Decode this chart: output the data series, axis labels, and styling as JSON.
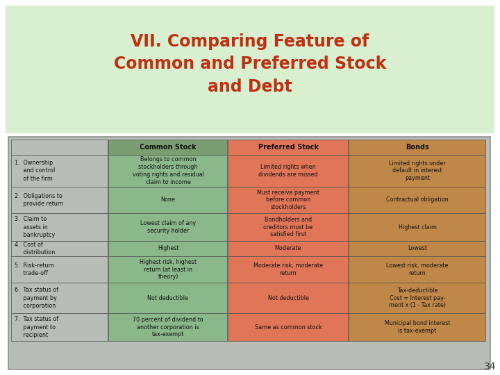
{
  "title_line1": "VII. Comparing Feature of",
  "title_line2": "Common and Preferred Stock",
  "title_line3": "and Debt",
  "title_color": "#c03010",
  "title_bg_color": "#d8f0d0",
  "page_number": "34",
  "outer_bg_color": "#ffffff",
  "table_outer_bg": "#b8bdb8",
  "table_inner_bg": "#b8bdb8",
  "col_headers": [
    "Common Stock",
    "Preferred Stock",
    "Bonds"
  ],
  "col_header_colors": [
    "#7a9e72",
    "#e07558",
    "#c08848"
  ],
  "col_content_colors": [
    "#8ab88a",
    "#e07558",
    "#c08848"
  ],
  "row_label_color": "#b8bdb8",
  "row_labels": [
    "1.  Ownership\n     and control\n     of the firm",
    "2.  Obligations to\n     provide return",
    "3.  Claim to\n     assets in\n     bankruptcy",
    "4.  Cost of\n     distribution",
    "5.  Risk-return\n     trade-off",
    "6.  Tax status of\n     payment by\n     corporation",
    "7.  Tax status of\n     payment to\n     recipient"
  ],
  "common_stock": [
    "Belongs to common\nstockholders through\nvoting rights and residual\nclaim to income",
    "None",
    "Lowest claim of any\nsecurity holder",
    "Highest",
    "Highest risk, highest\nreturn (at least in\ntheory)",
    "Not deductible",
    "70 percent of dividend to\nanother corporation is\ntax-exempt"
  ],
  "preferred_stock": [
    "Limited rights when\ndividends are missed",
    "Must receive payment\nbefore common\nstockholders",
    "Bondholders and\ncreditors must be\nsatisfied first",
    "Moderate",
    "Moderate risk, moderate\nreturn",
    "Not deductible",
    "Same as common stock"
  ],
  "bonds": [
    "Limited rights under\ndefault in interest\npayment",
    "Contractual obligation",
    "Highest claim",
    "Lowest",
    "Lowest risk, moderate\nreturn",
    "Tax-deductible\nCost = Interest pay-\nment x (1 - Tax rate)",
    "Municipal bond interest\nis tax-exempt"
  ]
}
